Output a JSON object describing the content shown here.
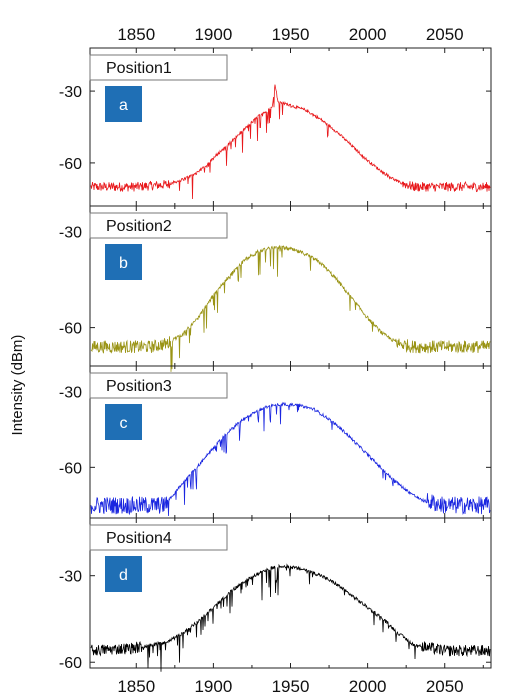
{
  "figure": {
    "ylabel": "Intensity (dBm)",
    "x_ticks": [
      "1850",
      "1900",
      "1950",
      "2000",
      "2050"
    ]
  },
  "chart_data": [
    {
      "type": "line",
      "panel_label": "a",
      "position_label": "Position1",
      "color": "#e8191c",
      "x_range": [
        1820,
        2080
      ],
      "ylim": [
        -78,
        -12
      ],
      "y_ticks": [
        -30,
        -60
      ],
      "x_ticks": [
        1850,
        1900,
        1950,
        2000,
        2050
      ],
      "series": [
        {
          "x": [
            1820,
            1850,
            1870,
            1880,
            1890,
            1900,
            1910,
            1920,
            1930,
            1938,
            1940,
            1942,
            1945,
            1950,
            1960,
            1970,
            1980,
            1990,
            2000,
            2010,
            2020,
            2030,
            2050,
            2080
          ],
          "y": [
            -70,
            -70,
            -69,
            -67,
            -64,
            -58,
            -52,
            -46,
            -40,
            -37,
            -27,
            -35,
            -35,
            -36,
            -38,
            -42,
            -47,
            -53,
            -59,
            -64,
            -68,
            -70,
            -70,
            -70
          ]
        }
      ]
    },
    {
      "type": "line",
      "panel_label": "b",
      "position_label": "Position2",
      "color": "#9a9416",
      "x_range": [
        1820,
        2080
      ],
      "ylim": [
        -72,
        -22
      ],
      "y_ticks": [
        -30,
        -60
      ],
      "x_ticks": [
        1850,
        1900,
        1950,
        2000,
        2050
      ],
      "series": [
        {
          "x": [
            1820,
            1860,
            1870,
            1880,
            1890,
            1900,
            1910,
            1920,
            1930,
            1940,
            1945,
            1950,
            1960,
            1970,
            1980,
            1990,
            2000,
            2010,
            2020,
            2030,
            2040,
            2080
          ],
          "y": [
            -66,
            -66,
            -65,
            -62,
            -57,
            -50,
            -44,
            -39,
            -36,
            -35,
            -35,
            -35.5,
            -37,
            -40,
            -45,
            -51,
            -57,
            -62,
            -65,
            -66,
            -66,
            -66
          ]
        }
      ]
    },
    {
      "type": "line",
      "panel_label": "c",
      "position_label": "Position3",
      "color": "#1a26e0",
      "x_range": [
        1820,
        2080
      ],
      "ylim": [
        -80,
        -20
      ],
      "y_ticks": [
        -30,
        -60
      ],
      "x_ticks": [
        1850,
        1900,
        1950,
        2000,
        2050
      ],
      "series": [
        {
          "x": [
            1820,
            1850,
            1868,
            1875,
            1885,
            1895,
            1905,
            1915,
            1925,
            1935,
            1945,
            1955,
            1965,
            1975,
            1985,
            1995,
            2005,
            2015,
            2025,
            2035,
            2050,
            2080
          ],
          "y": [
            -75,
            -75,
            -75,
            -70,
            -63,
            -56,
            -49,
            -43,
            -39,
            -36,
            -35,
            -35.5,
            -37,
            -41,
            -46,
            -52,
            -58,
            -64,
            -69,
            -73,
            -75,
            -75
          ]
        }
      ]
    },
    {
      "type": "line",
      "panel_label": "d",
      "position_label": "Position4",
      "color": "#000000",
      "x_range": [
        1820,
        2080
      ],
      "ylim": [
        -62,
        -10
      ],
      "y_ticks": [
        -30,
        -60
      ],
      "x_ticks": [
        1850,
        1900,
        1950,
        2000,
        2050
      ],
      "series": [
        {
          "x": [
            1820,
            1850,
            1870,
            1880,
            1890,
            1900,
            1910,
            1920,
            1930,
            1940,
            1945,
            1950,
            1960,
            1970,
            1980,
            1990,
            2000,
            2010,
            2020,
            2030,
            2040,
            2050,
            2080
          ],
          "y": [
            -56,
            -55,
            -53,
            -50,
            -46,
            -41,
            -36,
            -32,
            -29,
            -27,
            -26.5,
            -27,
            -28,
            -30,
            -33,
            -37,
            -41,
            -45,
            -50,
            -54,
            -55,
            -56,
            -56
          ]
        }
      ]
    }
  ]
}
